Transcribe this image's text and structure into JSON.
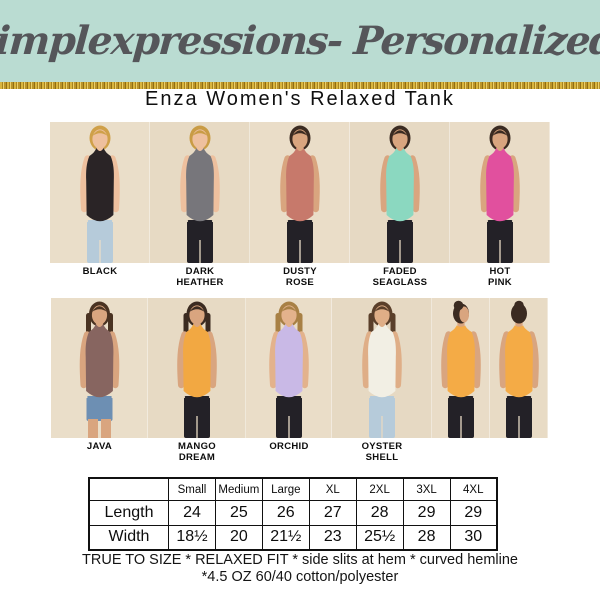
{
  "brand": {
    "name": "Simplexpressions- Personalized!",
    "bg_color": "#badcd2",
    "text_color": "#55565a",
    "glitter_color": "#c3992b"
  },
  "title": "Enza Women's Relaxed Tank",
  "photo_background": "#e9dcc7",
  "strips": [
    {
      "h": 141,
      "slots": [
        {
          "id": "black",
          "label": [
            "BLACK"
          ],
          "w": 100,
          "bgc": "#eadec9",
          "tank": "#2a2426",
          "skin": "#eec09e",
          "hair": "#cfa049",
          "pants": "#b6cbda",
          "view": "front",
          "locks": false,
          "shorts": false
        },
        {
          "id": "dark-heather",
          "label": [
            "DARK",
            "HEATHER"
          ],
          "w": 100,
          "bgc": "#e7dac4",
          "tank": "#77767b",
          "skin": "#eec09e",
          "hair": "#c99c45",
          "pants": "#232127",
          "view": "front",
          "locks": false,
          "shorts": false
        },
        {
          "id": "dusty-rose",
          "label": [
            "DUSTY",
            "ROSE"
          ],
          "w": 100,
          "bgc": "#eaddc8",
          "tank": "#c7796b",
          "skin": "#d9a57f",
          "hair": "#3b2b21",
          "pants": "#232127",
          "view": "front",
          "locks": false,
          "shorts": false
        },
        {
          "id": "faded-seaglass",
          "label": [
            "FADED",
            "SEAGLASS"
          ],
          "w": 100,
          "bgc": "#e6d9c3",
          "tank": "#8bd8c0",
          "skin": "#d9a57f",
          "hair": "#3b2b21",
          "pants": "#232127",
          "view": "front",
          "locks": false,
          "shorts": false
        },
        {
          "id": "hot-pink",
          "label": [
            "HOT",
            "PINK"
          ],
          "w": 100,
          "bgc": "#e9dcc7",
          "tank": "#e1509e",
          "skin": "#d9a57f",
          "hair": "#3b2b21",
          "pants": "#232127",
          "view": "front",
          "locks": false,
          "shorts": false
        }
      ]
    },
    {
      "h": 140,
      "slots": [
        {
          "id": "java",
          "label": [
            "JAVA"
          ],
          "w": 97,
          "bgc": "#eadec9",
          "tank": "#876560",
          "skin": "#d9a57f",
          "hair": "#4a3322",
          "pants": "#6d8fb3",
          "view": "front",
          "locks": true,
          "shorts": true
        },
        {
          "id": "mango-dream",
          "label": [
            "MANGO",
            "DREAM"
          ],
          "w": 98,
          "bgc": "#e7dac4",
          "tank": "#f2a842",
          "skin": "#d9a57f",
          "hair": "#3b2b21",
          "pants": "#232127",
          "view": "front",
          "locks": true,
          "shorts": false
        },
        {
          "id": "orchid",
          "label": [
            "ORCHID"
          ],
          "w": 86,
          "bgc": "#eaddc8",
          "tank": "#c9b9e6",
          "skin": "#e3b28c",
          "hair": "#a88045",
          "pants": "#232127",
          "view": "front",
          "locks": true,
          "shorts": false
        },
        {
          "id": "oyster-shell",
          "label": [
            "OYSTER",
            "SHELL"
          ],
          "w": 100,
          "bgc": "#e6d9c3",
          "tank": "#f2efe4",
          "skin": "#dfae87",
          "hair": "#5a3f2a",
          "pants": "#b6cbda",
          "view": "front",
          "locks": true,
          "shorts": false
        },
        {
          "id": "side-view-gold",
          "label": [],
          "w": 58,
          "bgc": "#e9dcc7",
          "tank": "#f4ab46",
          "skin": "#d9a57f",
          "hair": "#3b2b21",
          "pants": "#232127",
          "view": "side",
          "locks": false,
          "shorts": false
        },
        {
          "id": "back-view-gold",
          "label": [],
          "w": 58,
          "bgc": "#e8dbc5",
          "tank": "#f4ab46",
          "skin": "#d9a57f",
          "hair": "#3b2b21",
          "pants": "#232127",
          "view": "back",
          "locks": false,
          "shorts": false
        }
      ]
    }
  ],
  "size_table": {
    "headers": [
      "",
      "Small",
      "Medium",
      "Large",
      "XL",
      "2XL",
      "3XL",
      "4XL"
    ],
    "rows": [
      {
        "label": "Length",
        "values": [
          "24",
          "25",
          "26",
          "27",
          "28",
          "29",
          "29"
        ]
      },
      {
        "label": "Width",
        "values": [
          "18½",
          "20",
          "21½",
          "23",
          "25½",
          "28",
          "30"
        ]
      }
    ]
  },
  "footer": {
    "line1": "TRUE TO SIZE * RELAXED FIT * side slits at hem * curved hemline",
    "line2": "*4.5 OZ 60/40 cotton/polyester"
  }
}
